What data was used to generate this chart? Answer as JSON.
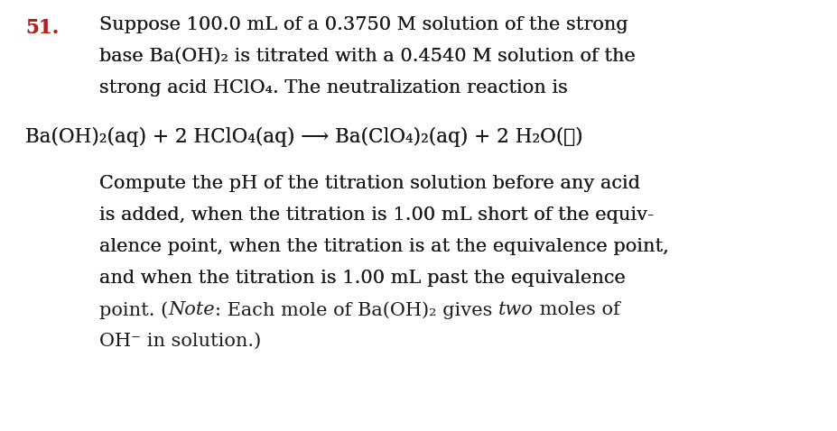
{
  "background_color": "#ffffff",
  "number": "51.",
  "number_color": "#b22222",
  "text_color": "#1a1a1a",
  "font_family": "DejaVu Serif",
  "font_size": 15.0,
  "eq_font_size": 15.5,
  "num_font_size": 15.5,
  "line1": "Suppose 100.0 mL of a 0.3750 M solution of the strong",
  "line2": "base Ba(OH)₂ is titrated with a 0.4540 M solution of the",
  "line3": "strong acid HClO₄. The neutralization reaction is",
  "equation": "Ba(OH)₂(aq) + 2 HClO₄(aq) ⟶ Ba(ClO₄)₂(aq) + 2 H₂O(ℓ)",
  "pline1": "Compute the pH of the titration solution before any acid",
  "pline2": "is added, when the titration is 1.00 mL short of the equiv-",
  "pline3": "alence point, when the titration is at the equivalence point,",
  "pline4": "and when the titration is 1.00 mL past the equivalence",
  "pline5_before": "point. (",
  "pline5_note": "Note",
  "pline5_mid": ": Each mole of Ba(OH)₂ gives ",
  "pline5_italic": "two",
  "pline5_after": " moles of",
  "pline6": "OH⁻ in solution.)"
}
